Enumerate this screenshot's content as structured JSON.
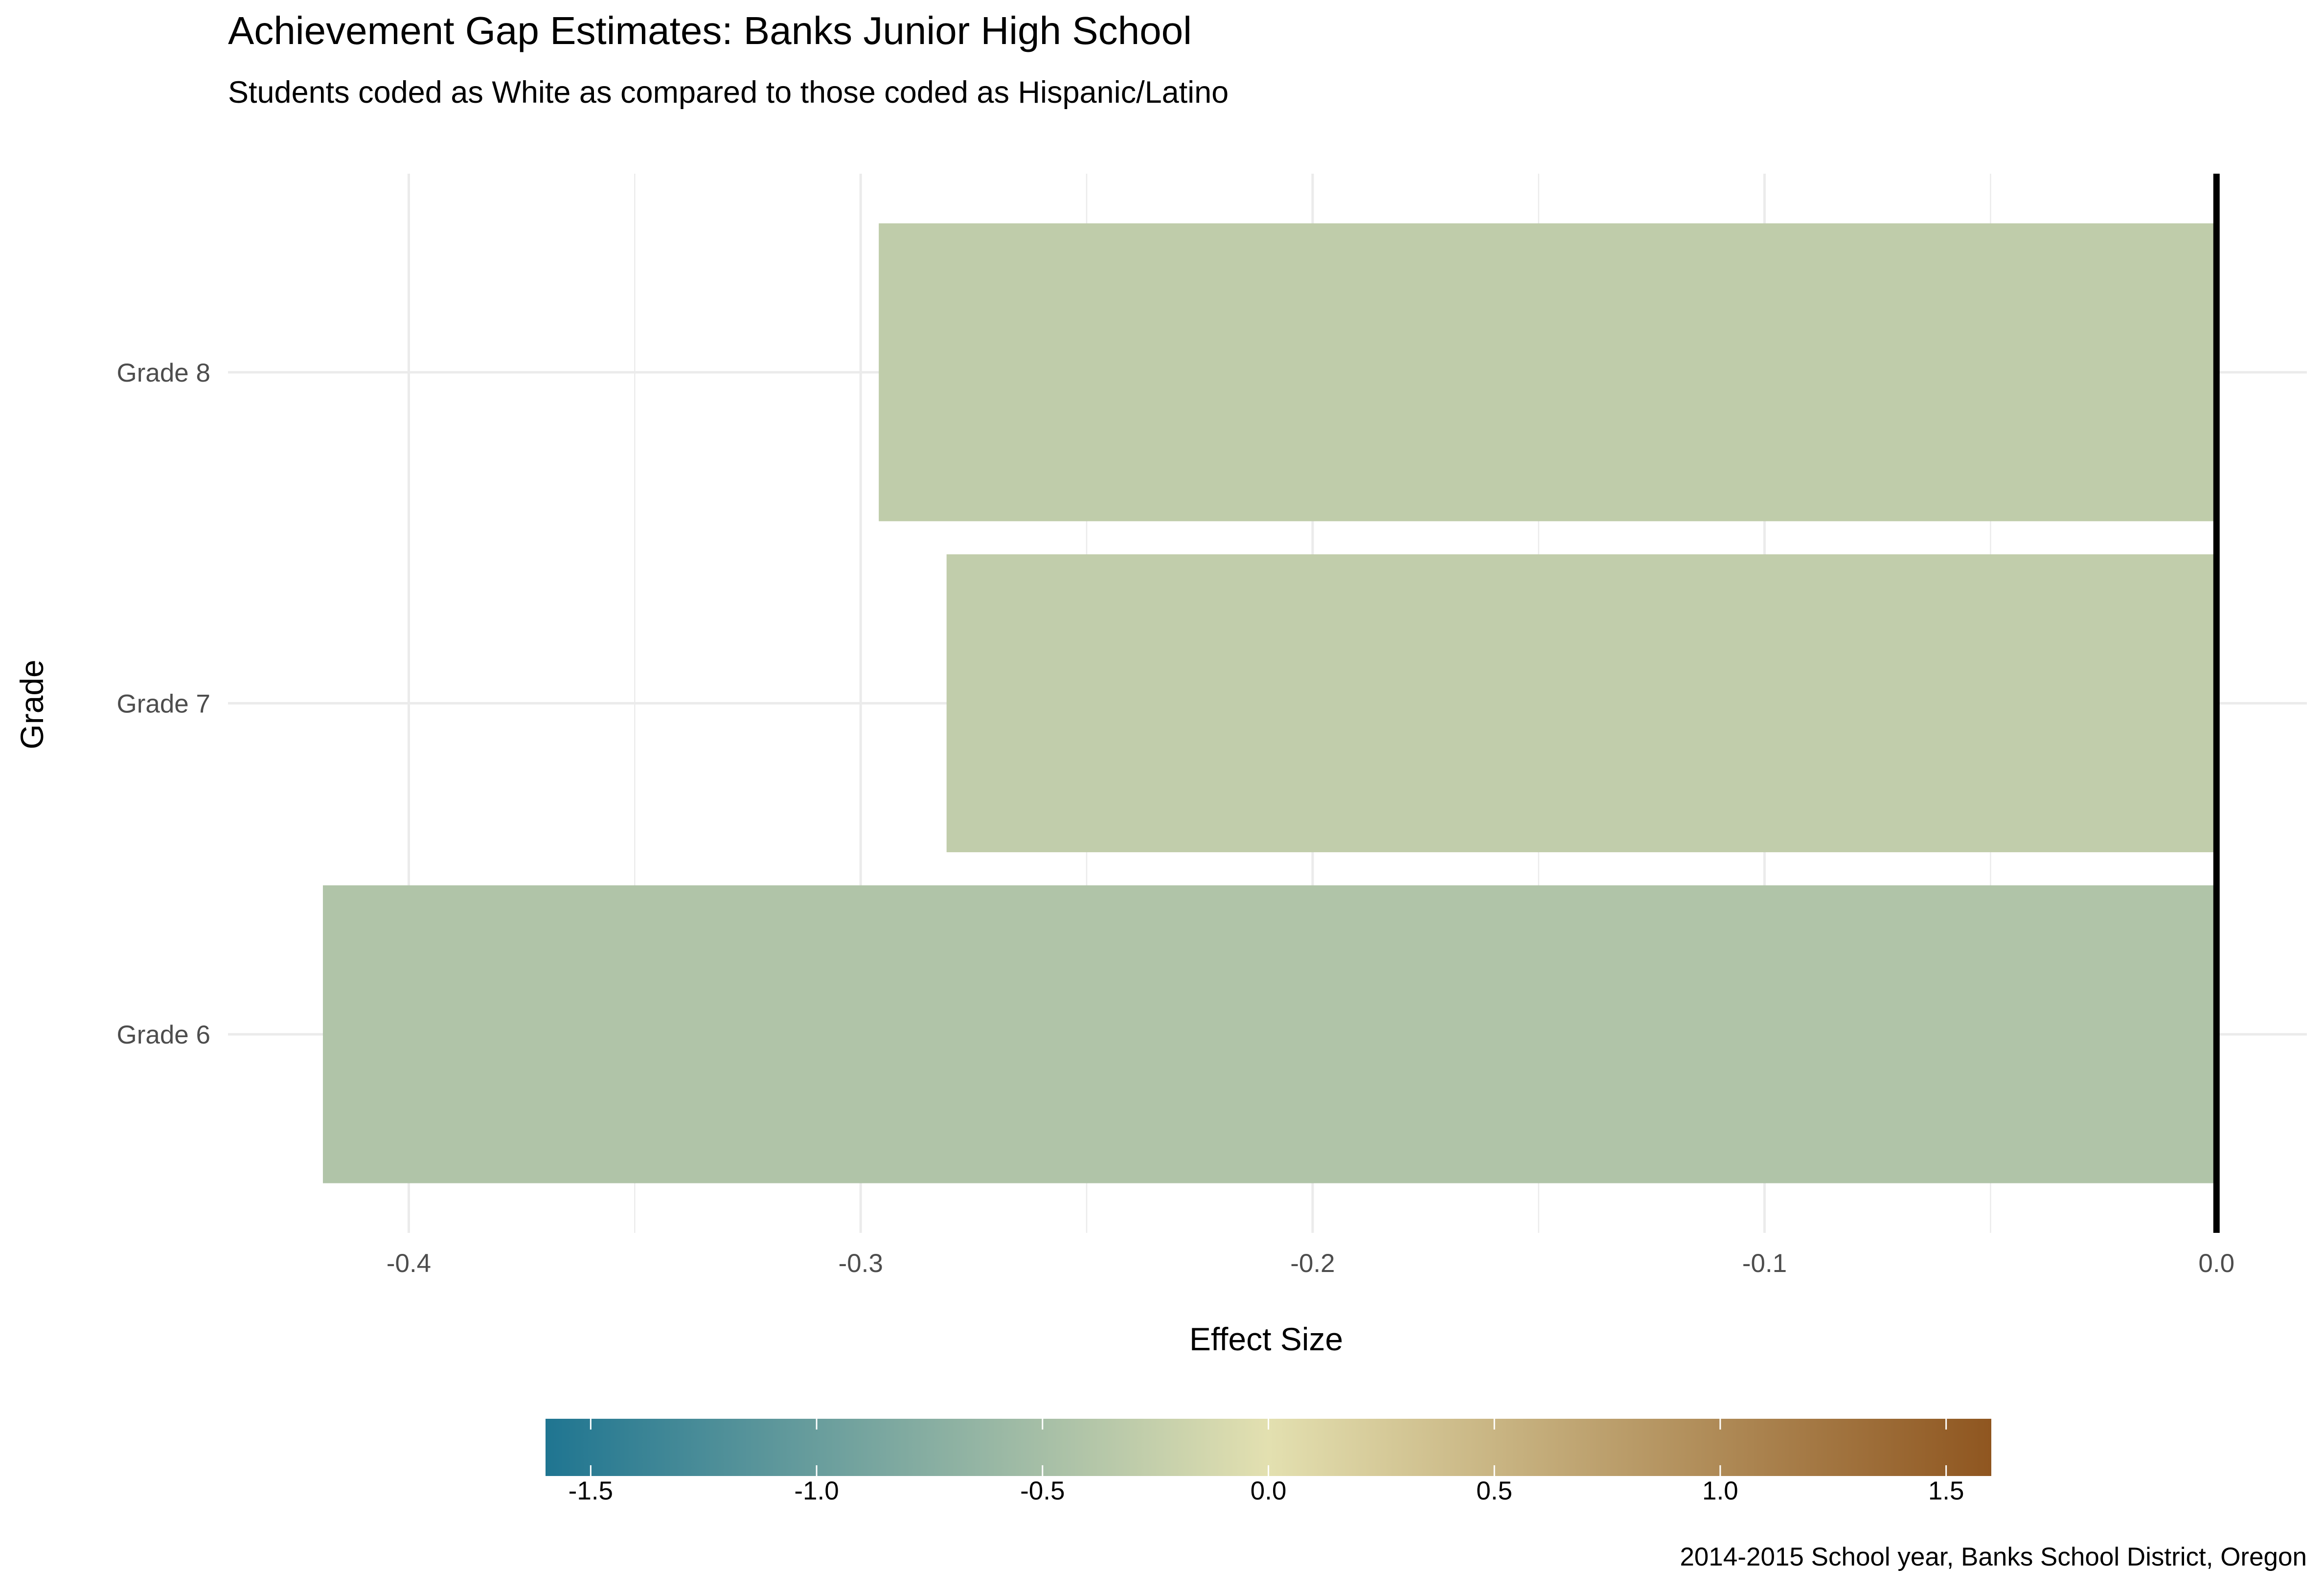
{
  "chart_data": {
    "type": "bar",
    "orientation": "horizontal",
    "title": "Achievement Gap Estimates: Banks Junior High School",
    "subtitle": "Students coded as White as compared to those coded as Hispanic/Latino",
    "xlabel": "Effect Size",
    "ylabel": "Grade",
    "caption": "2014-2015 School year, Banks School District, Oregon",
    "categories": [
      "Grade 6",
      "Grade 7",
      "Grade 8"
    ],
    "values": [
      -0.419,
      -0.281,
      -0.296
    ],
    "xlim": [
      -0.44,
      0.02
    ],
    "x_ticks": [
      -0.4,
      -0.3,
      -0.2,
      -0.1,
      0.0
    ],
    "x_tick_labels": [
      "-0.4",
      "-0.3",
      "-0.2",
      "-0.1",
      "0.0"
    ],
    "grid": true,
    "reference_line": {
      "x": 0,
      "color": "#000000"
    },
    "legend": {
      "type": "colorbar",
      "placement": "bottom",
      "range": [
        -1.6,
        1.6
      ],
      "ticks": [
        -1.5,
        -1.0,
        -0.5,
        0.0,
        0.5,
        1.0,
        1.5
      ],
      "tick_labels": [
        "-1.5",
        "-1.0",
        "-0.5",
        "0.0",
        "0.5",
        "1.0",
        "1.5"
      ],
      "colors": {
        "low": "#1f7591",
        "mid": "#e3e0b0",
        "high": "#8f5620"
      }
    }
  }
}
